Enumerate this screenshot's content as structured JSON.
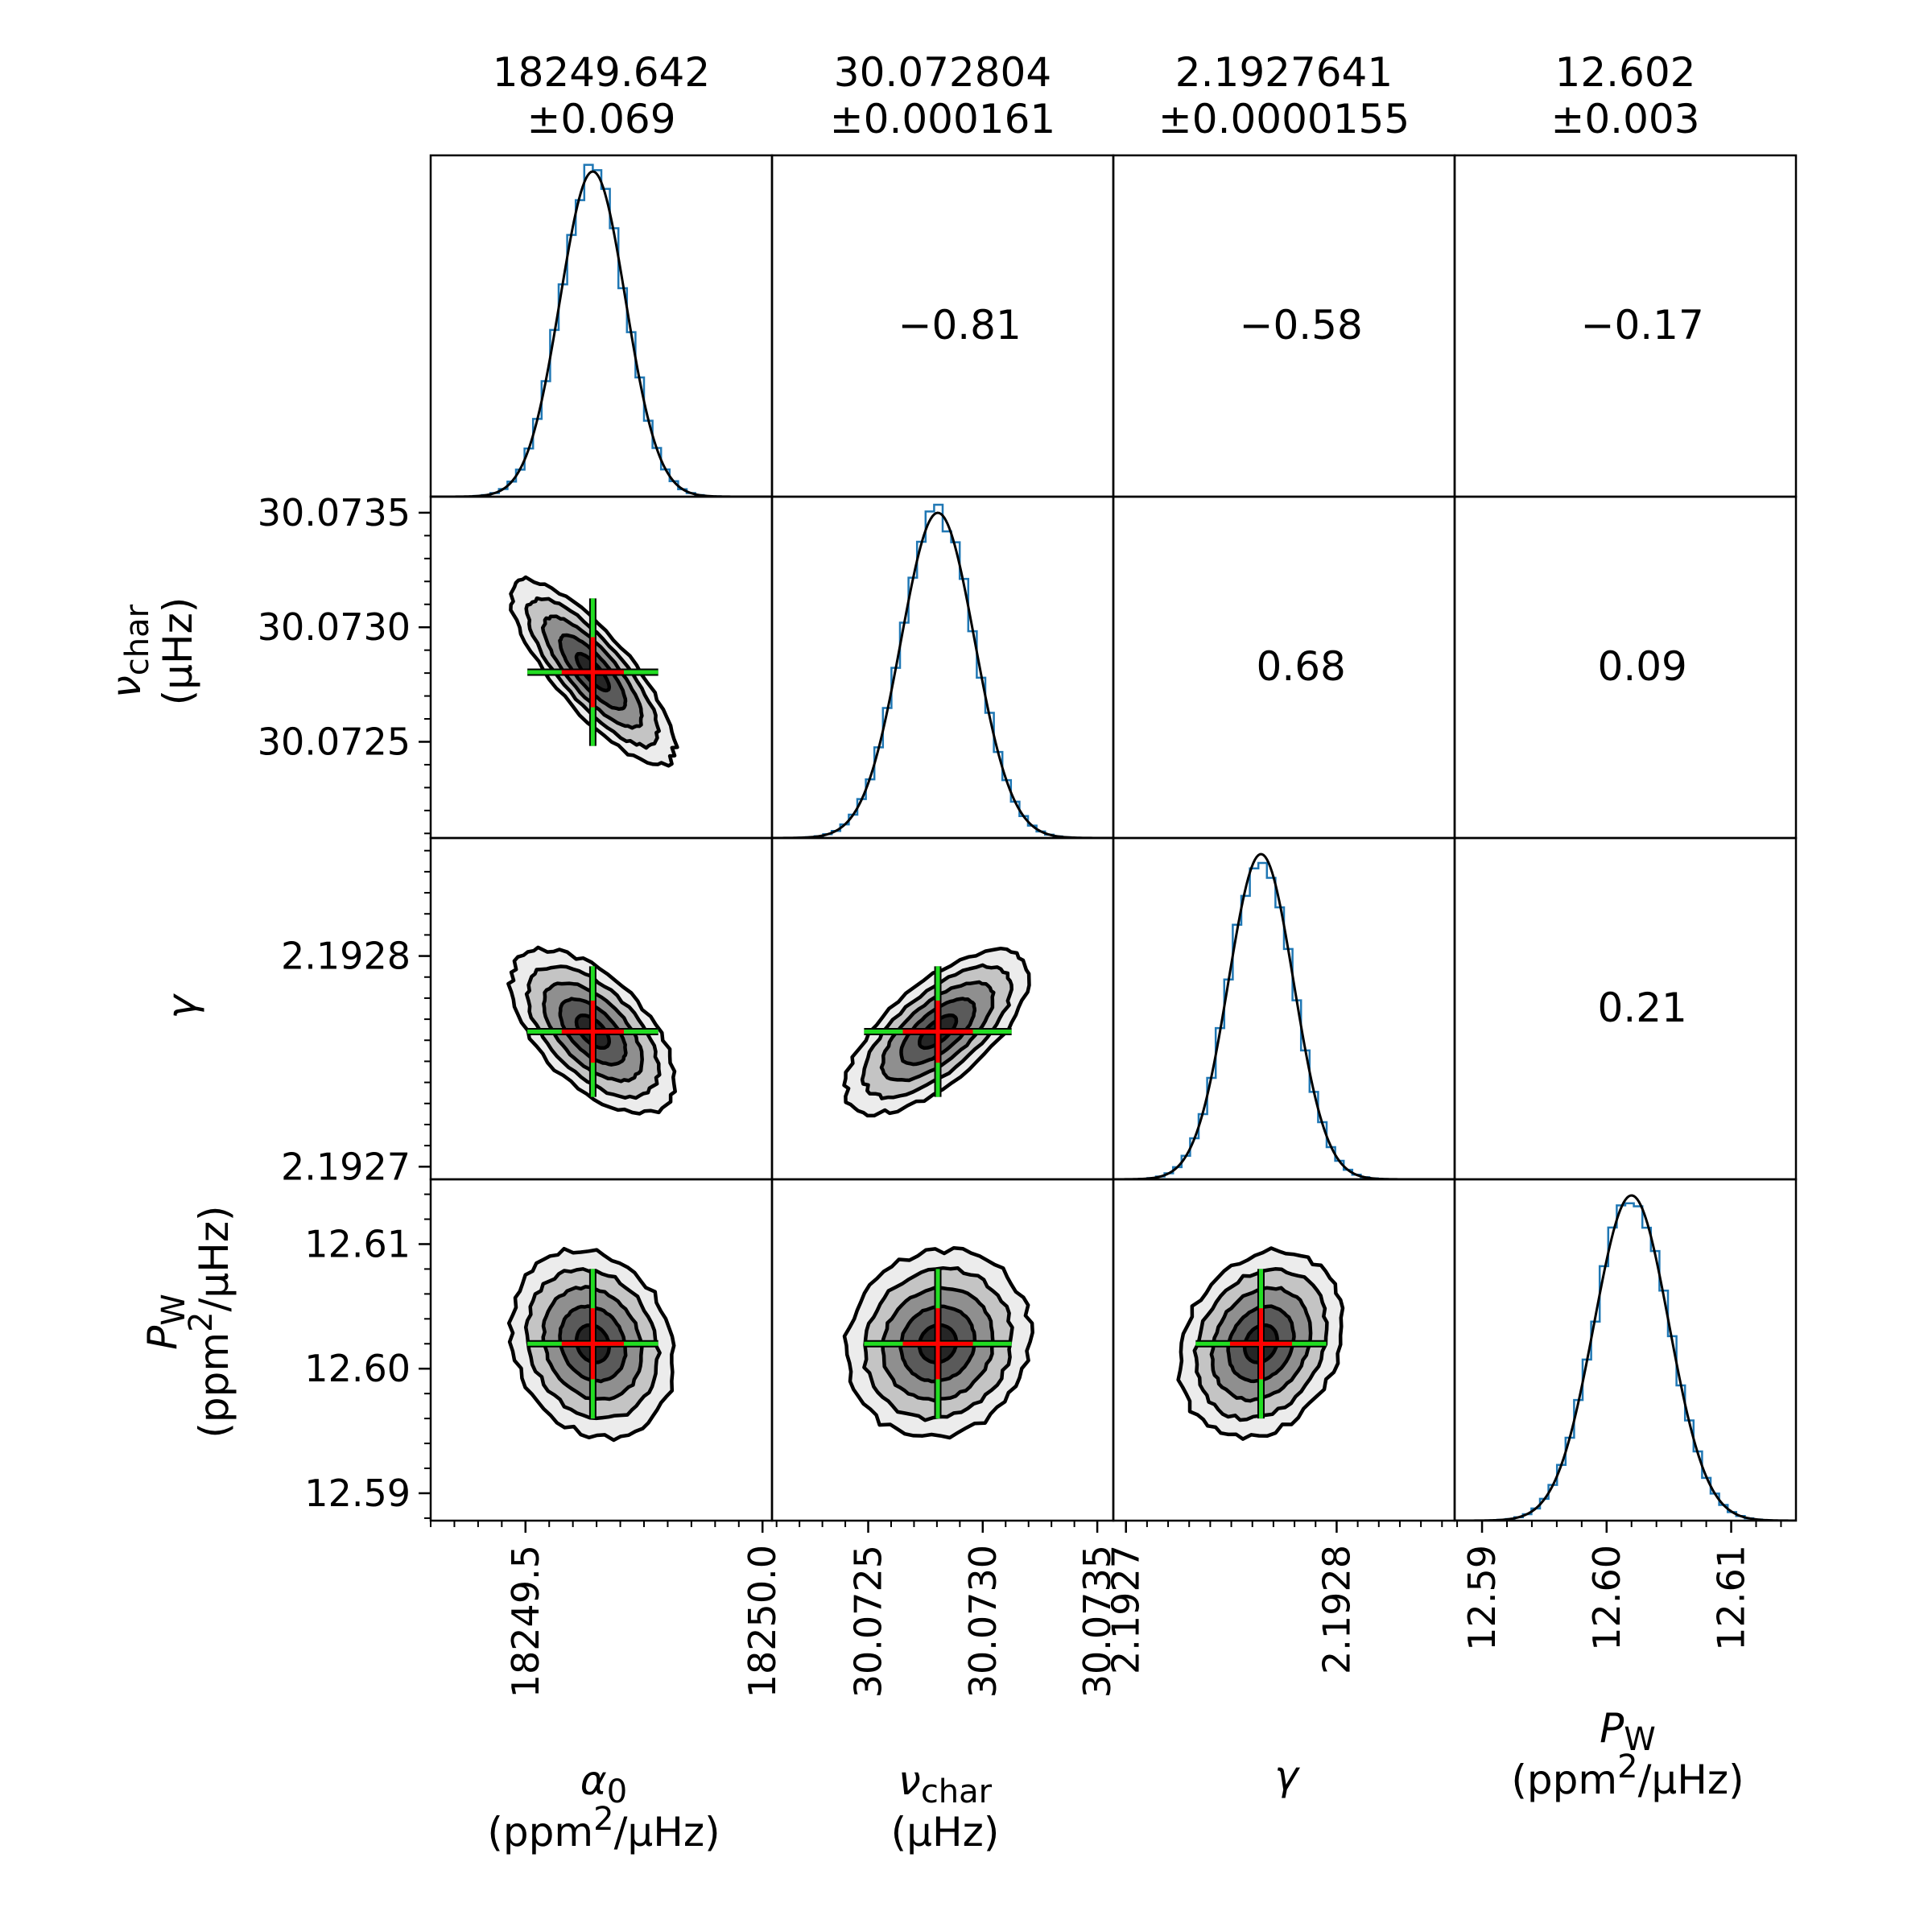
{
  "chart_data": {
    "type": "corner",
    "parameters": [
      {
        "key": "alpha0",
        "summary_value": "18249.642",
        "summary_error": "±0.069",
        "mean": 18249.642,
        "sigma": 0.069,
        "range": [
          18249.3,
          18250.02
        ],
        "major_ticks": [
          18249.5,
          18250.0
        ],
        "tick_labels": [
          "18249.5",
          "18250.0"
        ],
        "minor_step": 0.05,
        "label_symbol": "α",
        "label_subscript": "0",
        "label_unit_prefix": "(ppm",
        "label_unit_sup": "2",
        "label_unit_suffix": "/μHz)"
      },
      {
        "key": "nu_char",
        "summary_value": "30.072804",
        "summary_error": "±0.000161",
        "mean": 30.072804,
        "sigma": 0.000161,
        "range": [
          30.07208,
          30.07357
        ],
        "major_ticks": [
          30.0725,
          30.073,
          30.0735
        ],
        "tick_labels": [
          "30.0725",
          "30.0730",
          "30.0735"
        ],
        "minor_step": 0.0001,
        "label_symbol": "ν",
        "label_subscript": "char",
        "label_unit": "(μHz)"
      },
      {
        "key": "gamma",
        "summary_value": "2.1927641",
        "summary_error": "±0.0000155",
        "mean": 2.1927641,
        "sigma": 1.55e-05,
        "range": [
          2.192694,
          2.192856
        ],
        "major_ticks": [
          2.1927,
          2.1928
        ],
        "tick_labels": [
          "2.1927",
          "2.1928"
        ],
        "minor_step": 1e-05,
        "label_symbol": "γ"
      },
      {
        "key": "P_W",
        "summary_value": "12.602",
        "summary_error": "±0.003",
        "mean": 12.602,
        "sigma": 0.003,
        "range": [
          12.5878,
          12.6152
        ],
        "major_ticks": [
          12.59,
          12.6,
          12.61
        ],
        "tick_labels": [
          "12.59",
          "12.60",
          "12.61"
        ],
        "minor_step": 0.002,
        "label_symbol": "P",
        "label_subscript": "W",
        "label_unit_prefix": "(ppm",
        "label_unit_sup": "2",
        "label_unit_suffix": "/μHz)"
      }
    ],
    "correlations": [
      {
        "row": 0,
        "col": 1,
        "value": -0.81,
        "label": "−0.81"
      },
      {
        "row": 0,
        "col": 2,
        "value": -0.58,
        "label": "−0.58"
      },
      {
        "row": 0,
        "col": 3,
        "value": -0.17,
        "label": "−0.17"
      },
      {
        "row": 1,
        "col": 2,
        "value": 0.68,
        "label": "0.68"
      },
      {
        "row": 1,
        "col": 3,
        "value": 0.09,
        "label": "0.09"
      },
      {
        "row": 2,
        "col": 3,
        "value": 0.21,
        "label": "0.21"
      }
    ],
    "contour_levels_sigma": [
      0.5,
      1.0,
      1.5,
      2.0,
      2.5
    ],
    "contour_fills": [
      "#262626",
      "#5a5a5a",
      "#8f8f8f",
      "#c4c4c4",
      "#ececec"
    ],
    "colors": {
      "histogram": "#1f77b4",
      "gaussian_fit": "#000000",
      "cross_center": "#ff0000",
      "cross_arms": "#22dd22",
      "contour_line": "#000000"
    }
  }
}
